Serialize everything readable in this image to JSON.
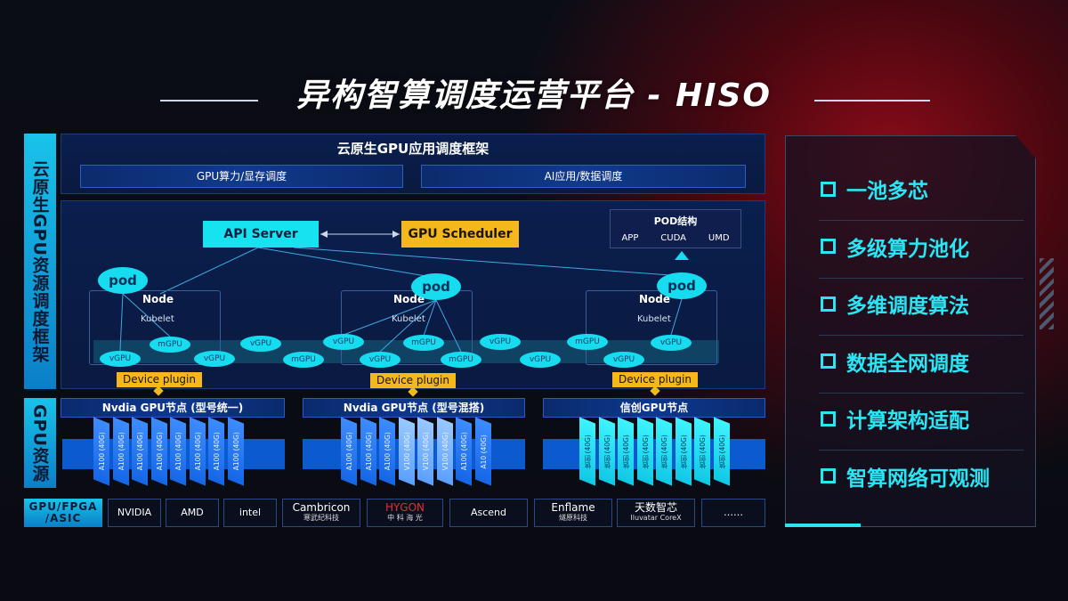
{
  "title": "异构智算调度运营平台 - HISO",
  "side_labels": {
    "framework": "云原生GPU资源调度框架",
    "resources": "GPU资源"
  },
  "top_panel": {
    "title": "云原生GPU应用调度框架",
    "bars": [
      "GPU算力/显存调度",
      "AI应用/数据调度"
    ]
  },
  "scheduler": {
    "api_server": "API Server",
    "gpu_scheduler": "GPU Scheduler"
  },
  "pod_structure": {
    "title": "POD结构",
    "items": [
      "APP",
      "CUDA",
      "UMD"
    ]
  },
  "nodes": [
    {
      "label": "Node",
      "kubelet": "Kubelet",
      "pod": "pod",
      "device_plugin": "Device plugin"
    },
    {
      "label": "Node",
      "kubelet": "Kubelet",
      "pod": "pod",
      "device_plugin": "Device plugin"
    },
    {
      "label": "Node",
      "kubelet": "Kubelet",
      "pod": "pod",
      "device_plugin": "Device plugin"
    }
  ],
  "virtual_gpus": [
    "vGPU",
    "mGPU",
    "vGPU",
    "vGPU",
    "mGPU",
    "vGPU",
    "vGPU",
    "mGPU",
    "mGPU",
    "vGPU",
    "vGPU",
    "mGPU",
    "vGPU",
    "vGPU"
  ],
  "gpu_groups": [
    {
      "title": "Nvdia GPU节点 (型号统一)",
      "chips": [
        "A100 (40G)",
        "A100 (40G)",
        "A100 (40G)",
        "A100 (40G)",
        "A100 (40G)",
        "A100 (40G)",
        "A100 (40G)",
        "A100 (40G)"
      ],
      "color": "#1566e6"
    },
    {
      "title": "Nvdia GPU节点 (型号混搭)",
      "chips": [
        "A100 (40G)",
        "A100 (40G)",
        "A100 (40G)",
        "V100 (40G)",
        "V100 (40G)",
        "V100 (40G)",
        "A100 (40G)",
        "A10 (40G)"
      ],
      "color": "#5aa0ff"
    },
    {
      "title": "信创GPU节点",
      "chips": [
        "信创 (40G)",
        "信创 (40G)",
        "信创 (40G)",
        "信创 (40G)",
        "信创 (40G)",
        "信创 (40G)",
        "信创 (40G)",
        "信创 (40G)"
      ],
      "color": "#10c8e6"
    }
  ],
  "vendors": {
    "category": "GPU/FPGA /ASIC",
    "items": [
      {
        "name": "NVIDIA"
      },
      {
        "name": "AMD"
      },
      {
        "name": "intel"
      },
      {
        "name": "Cambricon",
        "sub": "寒武纪科技"
      },
      {
        "name": "HYGON",
        "sub": "中 科 海 光"
      },
      {
        "name": "Ascend"
      },
      {
        "name": "Enflame",
        "sub": "燧原科技"
      },
      {
        "name": "天数智芯",
        "sub": "Iluvatar CoreX"
      },
      {
        "name": "……"
      }
    ]
  },
  "features": [
    "一池多芯",
    "多级算力池化",
    "多维调度算法",
    "数据全网调度",
    "计算架构适配",
    "智算网络可观测"
  ],
  "colors": {
    "accent_cyan": "#17dcef",
    "accent_yellow": "#f4b81c",
    "panel_blue": "#0a1f4e"
  }
}
